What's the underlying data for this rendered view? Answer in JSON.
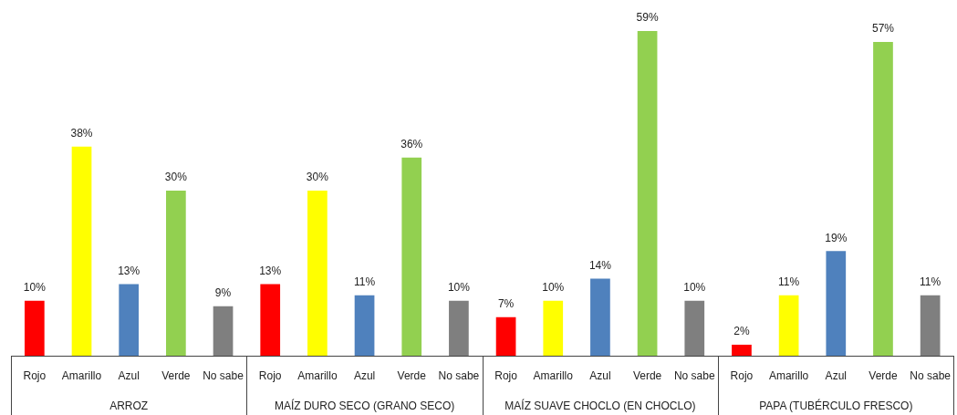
{
  "chart_data": {
    "type": "bar",
    "categories": [
      "ARROZ",
      "MAÍZ DURO SECO (GRANO SECO)",
      "MAÍZ SUAVE CHOCLO (EN CHOCLO)",
      "PAPA (TUBÉRCULO FRESCO)"
    ],
    "series": [
      {
        "name": "Rojo",
        "color": "#ff0000",
        "values": [
          10,
          13,
          7,
          2
        ],
        "value_labels": [
          "10%",
          "13%",
          "7%",
          "2%"
        ]
      },
      {
        "name": "Amarillo",
        "color": "#ffff00",
        "values": [
          38,
          30,
          10,
          11
        ],
        "value_labels": [
          "38%",
          "30%",
          "10%",
          "11%"
        ]
      },
      {
        "name": "Azul",
        "color": "#4f81bd",
        "values": [
          13,
          11,
          14,
          19
        ],
        "value_labels": [
          "13%",
          "11%",
          "14%",
          "19%"
        ]
      },
      {
        "name": "Verde",
        "color": "#92d050",
        "values": [
          30,
          36,
          59,
          57
        ],
        "value_labels": [
          "30%",
          "36%",
          "59%",
          "57%"
        ]
      },
      {
        "name": "No sabe",
        "color": "#7f7f7f",
        "values": [
          9,
          10,
          10,
          11
        ],
        "value_labels": [
          "9%",
          "10%",
          "10%",
          "11%"
        ]
      }
    ],
    "legend": false,
    "grid": false,
    "tick_labels": "x"
  }
}
